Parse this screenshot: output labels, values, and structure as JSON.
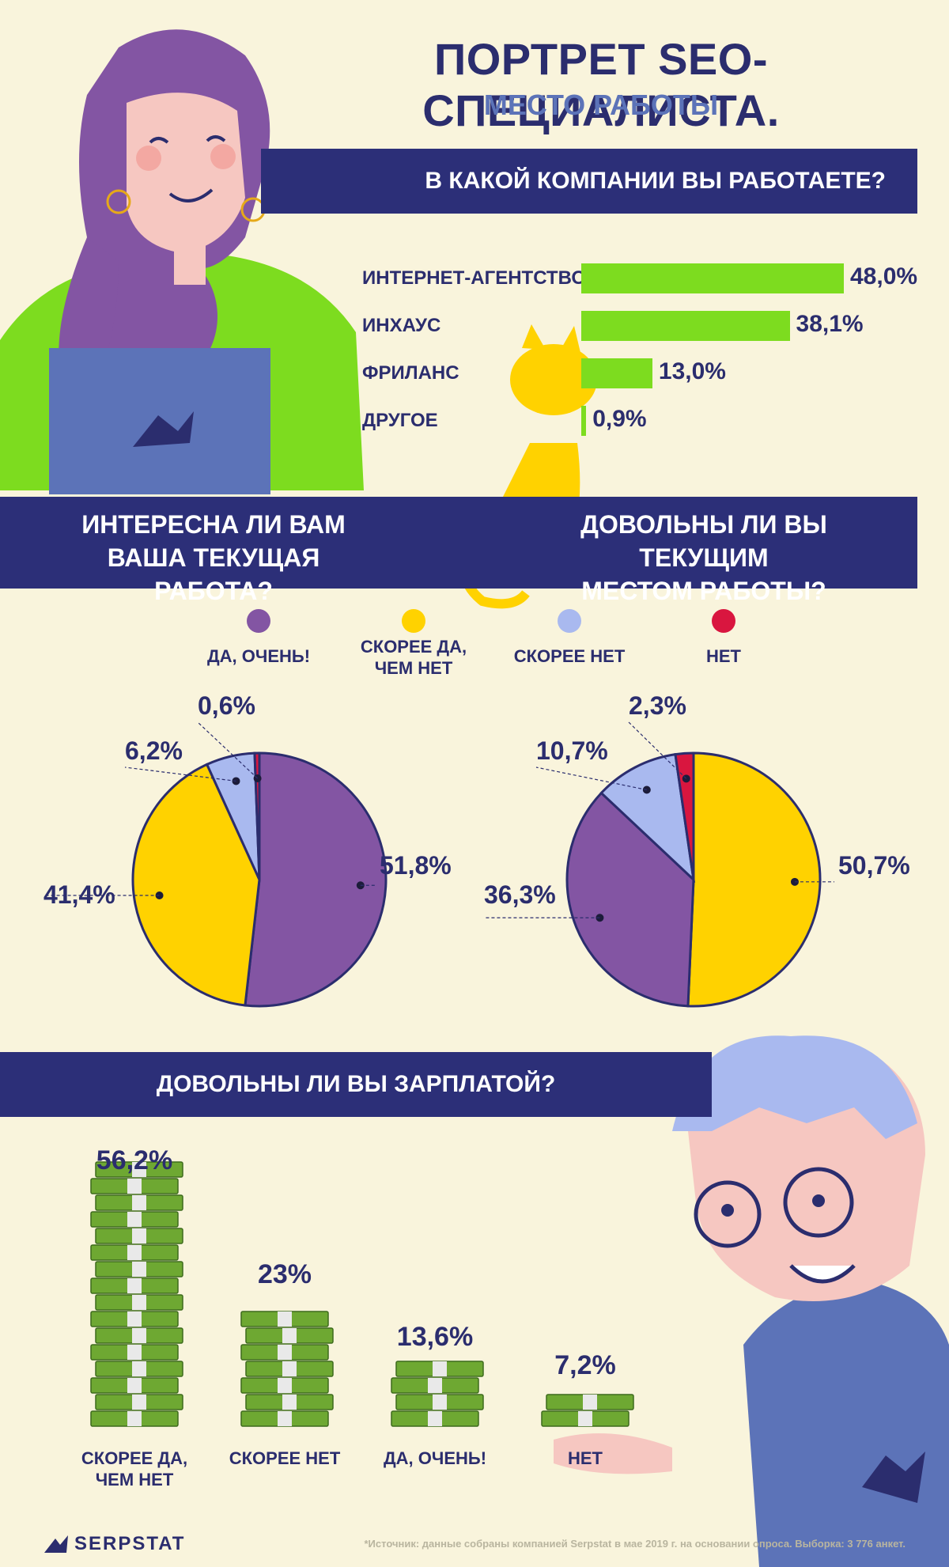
{
  "header": {
    "title": "ПОРТРЕТ SEO-СПЕЦИАЛИСТА.",
    "subtitle": "МЕСТО РАБОТЫ"
  },
  "colors": {
    "navy": "#2c2f78",
    "green": "#7ddc1f",
    "purple": "#8355a3",
    "yellow": "#ffd200",
    "lightblue": "#a9b9ef",
    "red": "#d9163f",
    "bg": "#f9f4dc"
  },
  "company": {
    "question": "В КАКОЙ КОМПАНИИ ВЫ РАБОТАЕТЕ?",
    "items": [
      {
        "label": "ИНТЕРНЕТ-АГЕНТСТВО",
        "value": 48.0,
        "text": "48,0%"
      },
      {
        "label": "ИНХАУС",
        "value": 38.1,
        "text": "38,1%"
      },
      {
        "label": "ФРИЛАНС",
        "value": 13.0,
        "text": "13,0%"
      },
      {
        "label": "ДРУГОЕ",
        "value": 0.9,
        "text": "0,9%"
      }
    ]
  },
  "questions": {
    "interest": "ИНТЕРЕСНА ЛИ ВАМ\nВАША ТЕКУЩАЯ РАБОТА?",
    "satisfaction": "ДОВОЛЬНЫ ЛИ ВЫ ТЕКУЩИМ\nМЕСТОМ РАБОТЫ?"
  },
  "legend": [
    {
      "label": "ДА, ОЧЕНЬ!",
      "color": "#8355a3"
    },
    {
      "label": "СКОРЕЕ ДА,\nЧЕМ НЕТ",
      "color": "#ffd200"
    },
    {
      "label": "СКОРЕЕ НЕТ",
      "color": "#a9b9ef"
    },
    {
      "label": "НЕТ",
      "color": "#d9163f"
    }
  ],
  "chart_data": [
    {
      "type": "pie",
      "title": "ИНТЕРЕСНА ЛИ ВАМ ВАША ТЕКУЩАЯ РАБОТА?",
      "slices": [
        {
          "name": "ДА, ОЧЕНЬ!",
          "value": 51.8,
          "text": "51,8%",
          "color": "#8355a3"
        },
        {
          "name": "СКОРЕЕ ДА, ЧЕМ НЕТ",
          "value": 41.4,
          "text": "41,4%",
          "color": "#ffd200"
        },
        {
          "name": "СКОРЕЕ НЕТ",
          "value": 6.2,
          "text": "6,2%",
          "color": "#a9b9ef"
        },
        {
          "name": "НЕТ",
          "value": 0.6,
          "text": "0,6%",
          "color": "#d9163f"
        }
      ]
    },
    {
      "type": "pie",
      "title": "ДОВОЛЬНЫ ЛИ ВЫ ТЕКУЩИМ МЕСТОМ РАБОТЫ?",
      "slices": [
        {
          "name": "СКОРЕЕ ДА, ЧЕМ НЕТ",
          "value": 50.7,
          "text": "50,7%",
          "color": "#ffd200"
        },
        {
          "name": "ДА, ОЧЕНЬ!",
          "value": 36.3,
          "text": "36,3%",
          "color": "#8355a3"
        },
        {
          "name": "СКОРЕЕ НЕТ",
          "value": 10.7,
          "text": "10,7%",
          "color": "#a9b9ef"
        },
        {
          "name": "НЕТ",
          "value": 2.3,
          "text": "2,3%",
          "color": "#d9163f"
        }
      ]
    },
    {
      "type": "bar",
      "title": "ДОВОЛЬНЫ ЛИ ВЫ ЗАРПЛАТОЙ?",
      "categories": [
        "СКОРЕЕ ДА,\nЧЕМ НЕТ",
        "СКОРЕЕ НЕТ",
        "ДА, ОЧЕНЬ!",
        "НЕТ"
      ],
      "values": [
        56.2,
        23,
        13.6,
        7.2
      ],
      "texts": [
        "56,2%",
        "23%",
        "13,6%",
        "7,2%"
      ]
    }
  ],
  "footer": {
    "source": "*Источник: данные собраны компанией Serpstat в мае 2019 г. на основании опроса. Выборка: 3 776 анкет.",
    "logo": "SERPSTAT"
  }
}
